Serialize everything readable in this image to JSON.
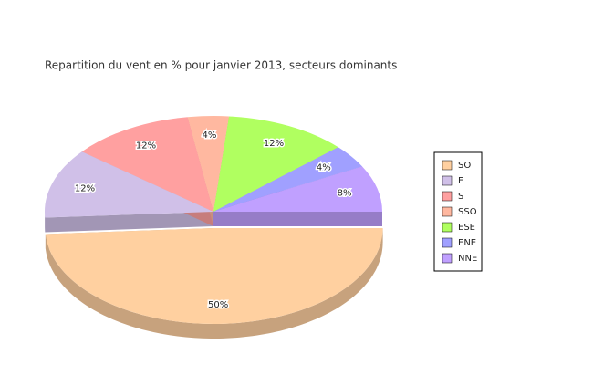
{
  "chart_data": {
    "type": "pie3d",
    "title": "Repartition du vent en % pour janvier 2013, secteurs dominants",
    "categories": [
      "SO",
      "E",
      "S",
      "SSO",
      "ESE",
      "ENE",
      "NNE"
    ],
    "values": [
      50,
      12,
      12,
      4,
      12,
      4,
      8
    ],
    "value_labels": [
      "50%",
      "12%",
      "12%",
      "4%",
      "12%",
      "4%",
      "8%"
    ],
    "colors": [
      "#ffd0a0",
      "#d0c0e8",
      "#ffa0a0",
      "#ffb8a0",
      "#b0ff60",
      "#a0a0ff",
      "#c0a0ff"
    ],
    "legend": "right"
  }
}
